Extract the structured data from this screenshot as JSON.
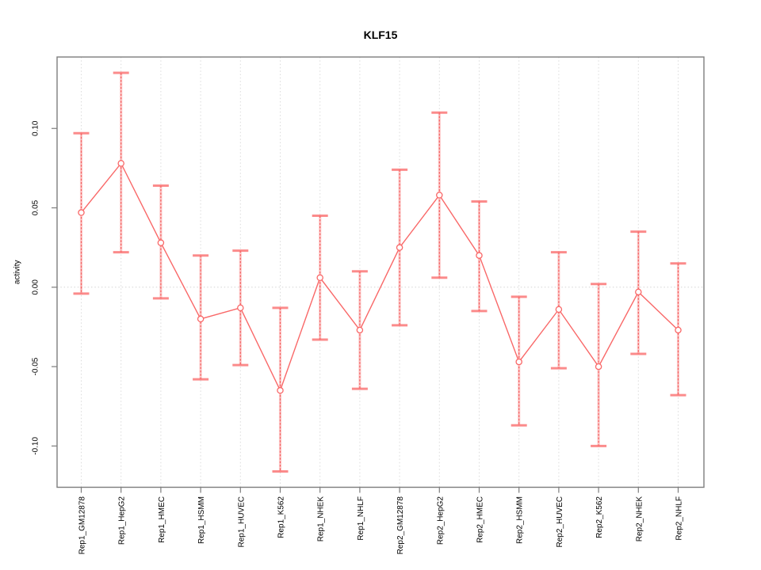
{
  "chart_data": {
    "type": "line",
    "title": "KLF15",
    "xlabel": "",
    "ylabel": "activity",
    "legend": "none",
    "marker": "open-circle",
    "grid": "vertical dotted gridline per category plus dotted horizontal zero line",
    "ylim": [
      -0.126,
      0.145
    ],
    "yticks": [
      -0.1,
      -0.05,
      0,
      0.05,
      0.1
    ],
    "ytick_labels": [
      "-0.10",
      "-0.05",
      "0.00",
      "0.05",
      "0.10"
    ],
    "categories": [
      "Rep1_GM12878",
      "Rep1_HepG2",
      "Rep1_HMEC",
      "Rep1_HSMM",
      "Rep1_HUVEC",
      "Rep1_K562",
      "Rep1_NHEK",
      "Rep1_NHLF",
      "Rep2_GM12878",
      "Rep2_HepG2",
      "Rep2_HMEC",
      "Rep2_HSMM",
      "Rep2_HUVEC",
      "Rep2_K562",
      "Rep2_NHEK",
      "Rep2_NHLF"
    ],
    "series": [
      {
        "name": "activity",
        "values": [
          0.047,
          0.078,
          0.028,
          -0.02,
          -0.013,
          -0.065,
          0.006,
          -0.027,
          0.025,
          0.058,
          0.02,
          -0.047,
          -0.014,
          -0.05,
          -0.003,
          -0.027
        ],
        "error_upper": [
          0.097,
          0.135,
          0.064,
          0.02,
          0.023,
          -0.013,
          0.045,
          0.01,
          0.074,
          0.11,
          0.054,
          -0.006,
          0.022,
          0.002,
          0.035,
          0.015
        ],
        "error_lower": [
          -0.004,
          0.022,
          -0.007,
          -0.058,
          -0.049,
          -0.116,
          -0.033,
          -0.064,
          -0.024,
          0.006,
          -0.015,
          -0.087,
          -0.051,
          -0.1,
          -0.042,
          -0.068
        ]
      }
    ],
    "colors": {
      "line": "#f96868",
      "marker_fill": "#ffffff",
      "error_underlay": "rgba(252,120,120,0.38)",
      "error_dash": "rgba(242,70,70,0.8)",
      "error_cap": "rgba(250,110,110,0.8)",
      "gridline": "#dbdbdb",
      "zero_line": "#d4d4d4",
      "axis": "#7d7d7d",
      "text": "#000000",
      "background": "#ffffff"
    }
  }
}
